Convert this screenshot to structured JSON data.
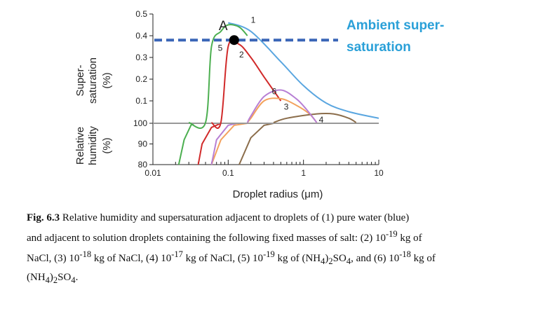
{
  "chart_data": {
    "type": "line",
    "xscale": "log",
    "xlim": [
      0.01,
      10
    ],
    "xticks": [
      "0.01",
      "0.1",
      "1",
      "10"
    ],
    "xlabel": "Droplet radius (μm)",
    "panels": [
      {
        "ylabel": [
          "Super-",
          "saturation",
          "(%)"
        ],
        "ylim": [
          0,
          0.5
        ],
        "yticks": [
          "0.1",
          "0.2",
          "0.3",
          "0.4",
          "0.5"
        ]
      },
      {
        "ylabel": [
          "Relative",
          "humidity",
          "(%)"
        ],
        "ylim": [
          80,
          100
        ],
        "yticks": [
          "80",
          "90",
          "100"
        ]
      }
    ],
    "reference_line": {
      "label": "Ambient super-saturation",
      "y": 0.38
    },
    "point": {
      "label": "A",
      "x": 0.12,
      "y": 0.38
    },
    "series": [
      {
        "name": "1",
        "color": "#5aa6e0",
        "points": [
          [
            0.1,
            0.46
          ],
          [
            0.2,
            0.42
          ],
          [
            0.5,
            0.28
          ],
          [
            1,
            0.17
          ],
          [
            2,
            0.09
          ],
          [
            4,
            0.05
          ],
          [
            10,
            0.02
          ]
        ]
      },
      {
        "name": "2",
        "color": "#d12a2a",
        "points": [
          [
            0.06,
            0.0
          ],
          [
            0.08,
            0.0
          ],
          [
            0.1,
            0.35
          ],
          [
            0.14,
            0.36
          ],
          [
            0.2,
            0.3
          ],
          [
            0.3,
            0.21
          ],
          [
            0.5,
            0.1
          ]
        ]
      },
      {
        "name": "3",
        "color": "#f3a25d",
        "points": [
          [
            0.18,
            0.0
          ],
          [
            0.2,
            0.02
          ],
          [
            0.3,
            0.1
          ],
          [
            0.5,
            0.11
          ],
          [
            0.8,
            0.08
          ],
          [
            1.2,
            0.04
          ],
          [
            1.5,
            0.0
          ]
        ]
      },
      {
        "name": "4",
        "color": "#8b6d4b",
        "points": [
          [
            0.4,
            0.0
          ],
          [
            0.6,
            0.02
          ],
          [
            1.5,
            0.04
          ],
          [
            2.5,
            0.04
          ],
          [
            4,
            0.02
          ],
          [
            5,
            0.0
          ]
        ]
      },
      {
        "name": "5",
        "color": "#4caf50",
        "points": [
          [
            0.03,
            0.0
          ],
          [
            0.05,
            0.0
          ],
          [
            0.06,
            0.35
          ],
          [
            0.08,
            0.42
          ],
          [
            0.1,
            0.45
          ],
          [
            0.14,
            0.44
          ],
          [
            0.18,
            0.4
          ]
        ]
      },
      {
        "name": "6",
        "color": "#b77fd4",
        "points": [
          [
            0.18,
            0.0
          ],
          [
            0.2,
            0.03
          ],
          [
            0.3,
            0.12
          ],
          [
            0.5,
            0.15
          ],
          [
            0.8,
            0.11
          ],
          [
            1.1,
            0.06
          ],
          [
            1.5,
            0.0
          ]
        ]
      }
    ],
    "lower_series": [
      {
        "name": "2",
        "color": "#d12a2a",
        "points": [
          [
            0.04,
            80
          ],
          [
            0.045,
            90
          ],
          [
            0.06,
            98
          ],
          [
            0.08,
            100
          ]
        ]
      },
      {
        "name": "3",
        "color": "#f3a25d",
        "points": [
          [
            0.06,
            80
          ],
          [
            0.08,
            92
          ],
          [
            0.12,
            99
          ],
          [
            0.18,
            100
          ]
        ]
      },
      {
        "name": "4",
        "color": "#8b6d4b",
        "points": [
          [
            0.14,
            80
          ],
          [
            0.2,
            93
          ],
          [
            0.3,
            99
          ],
          [
            0.4,
            100
          ]
        ]
      },
      {
        "name": "5",
        "color": "#4caf50",
        "points": [
          [
            0.022,
            80
          ],
          [
            0.026,
            92
          ],
          [
            0.032,
            99
          ],
          [
            0.035,
            100
          ]
        ]
      },
      {
        "name": "6",
        "color": "#b77fd4",
        "points": [
          [
            0.06,
            80
          ],
          [
            0.07,
            92
          ],
          [
            0.1,
            99
          ],
          [
            0.13,
            100
          ]
        ]
      },
      {
        "name": "1",
        "color": "#999999",
        "points": [
          [
            0.01,
            100
          ],
          [
            10,
            100
          ]
        ]
      }
    ]
  },
  "annotation": {
    "line1": "Ambient super-",
    "line2": "saturation"
  },
  "caption": {
    "fig": "Fig. 6.3",
    "l1": " Relative humidity and supersaturation adjacent to droplets of (1) pure water (blue)",
    "l2a": "and adjacent to solution droplets containing the following fixed masses of salt: (2) 10",
    "e1": "-19",
    "l2b": " kg of",
    "l3a": "NaCl, (3) 10",
    "e2": "-18",
    "l3b": " kg of NaCl, (4) 10",
    "e3": "-17",
    "l3c": " kg of NaCl, (5) 10",
    "e4": "-19",
    "l3d": " kg of (NH",
    "s1": "4",
    "l3e": ")",
    "s2": "2",
    "l3f": "SO",
    "s3": "4",
    "l3g": ", and (6) 10",
    "e5": "-18",
    "l3h": " kg of",
    "l4a": "(NH",
    "s4": "4",
    "l4b": ")",
    "s5": "2",
    "l4c": "SO",
    "s6": "4",
    "l4d": "."
  }
}
